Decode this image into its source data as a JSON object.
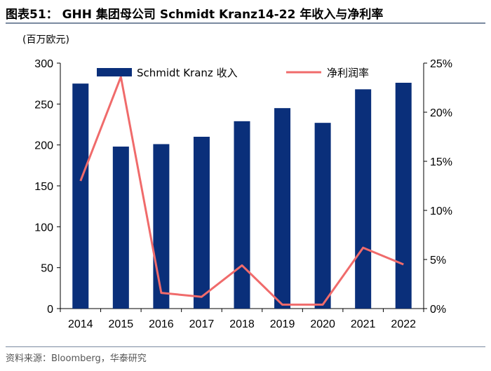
{
  "header": {
    "title": "图表51： GHH 集团母公司 Schmidt Kranz14-22 年收入与净利率",
    "unit": "(百万欧元)"
  },
  "footer": {
    "source": "资料来源：Bloomberg，华泰研究"
  },
  "colors": {
    "bar": "#0a2f7a",
    "line": "#f06b6b"
  },
  "chart_data": {
    "type": "bar",
    "categories": [
      "2014",
      "2015",
      "2016",
      "2017",
      "2018",
      "2019",
      "2020",
      "2021",
      "2022"
    ],
    "series": [
      {
        "name": "Schmidt Kranz 收入",
        "type": "bar",
        "axis": "left",
        "values": [
          275,
          198,
          201,
          210,
          229,
          245,
          227,
          268,
          276
        ]
      },
      {
        "name": "净利润率",
        "type": "line",
        "axis": "right",
        "values": [
          13.0,
          23.6,
          1.6,
          1.2,
          4.4,
          0.4,
          0.4,
          6.2,
          4.5
        ]
      }
    ],
    "ylim_left": [
      0,
      300
    ],
    "yticks_left": [
      "0",
      "50",
      "100",
      "150",
      "200",
      "250",
      "300"
    ],
    "ylim_right": [
      0,
      25
    ],
    "yticks_right": [
      "0%",
      "5%",
      "10%",
      "15%",
      "20%",
      "25%"
    ],
    "ylabel": "(百万欧元)",
    "legend_position": "top",
    "grid": false
  }
}
